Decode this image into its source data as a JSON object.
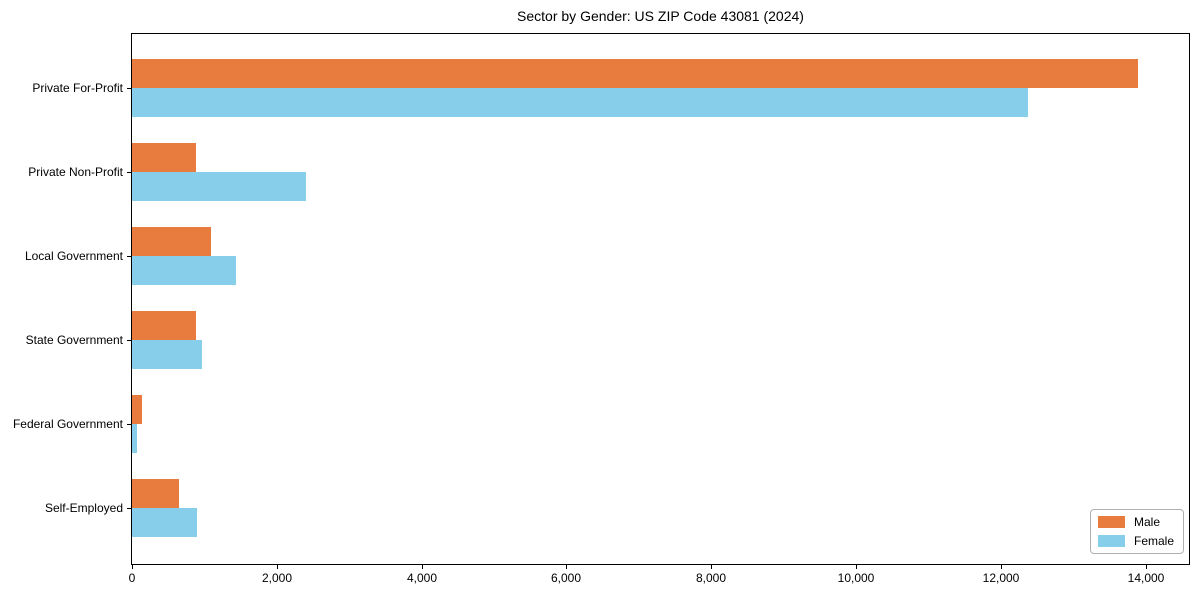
{
  "chart_data": {
    "type": "bar",
    "orientation": "horizontal",
    "grouped": true,
    "title": "Sector by Gender: US ZIP Code 43081 (2024)",
    "categories": [
      "Private For-Profit",
      "Private Non-Profit",
      "Local Government",
      "State Government",
      "Federal Government",
      "Self-Employed"
    ],
    "series": [
      {
        "name": "Male",
        "color": "#e87b3e",
        "values": [
          13900,
          890,
          1090,
          890,
          140,
          650
        ]
      },
      {
        "name": "Female",
        "color": "#87ceeb",
        "values": [
          12370,
          2400,
          1430,
          970,
          70,
          900
        ]
      }
    ],
    "xlabel": "",
    "ylabel": "",
    "xlim": [
      0,
      14600
    ],
    "xticks": [
      0,
      2000,
      4000,
      6000,
      8000,
      10000,
      12000,
      14000
    ],
    "xtick_labels": [
      "0",
      "2,000",
      "4,000",
      "6,000",
      "8,000",
      "10,000",
      "12,000",
      "14,000"
    ],
    "grid": false,
    "legend_position": "lower right",
    "background_color": "#ffffff",
    "spine_color": "#000000"
  }
}
